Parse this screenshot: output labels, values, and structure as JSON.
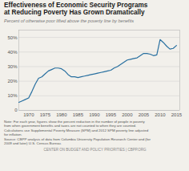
{
  "chart_data": {
    "type": "line",
    "title": "Effectiveness of Economic Security Programs\nat Reducing Poverty Has Grown Dramatically",
    "subtitle": "Percent of otherwise poor lifted above the poverty line by benefits",
    "annotations": [
      "Note: For each year, figures show the percent reduction in the number of people in poverty\nfrom when government benefits and taxes are not counted to when they are counted.\nCalculations use Supplemental Poverty Measure (SPM) and 2012 SPM poverty line adjusted\nfor inflation.",
      "Source: CBPP analysis of data from Columbia University Population Research Center and (for\n2009 and later) U.S. Census Bureau.",
      "CENTER ON BUDGET AND POLICY PRIORITIES | CBPP.ORG"
    ],
    "x": [
      1967,
      1968,
      1969,
      1970,
      1971,
      1972,
      1973,
      1974,
      1975,
      1976,
      1977,
      1978,
      1979,
      1980,
      1981,
      1982,
      1983,
      1984,
      1985,
      1986,
      1987,
      1988,
      1989,
      1990,
      1991,
      1992,
      1993,
      1994,
      1995,
      1996,
      1997,
      1998,
      1999,
      2000,
      2001,
      2002,
      2003,
      2004,
      2005,
      2006,
      2007,
      2008,
      2009,
      2010,
      2011,
      2012,
      2013,
      2014,
      2015
    ],
    "values": [
      5.5,
      6.5,
      7.5,
      8.5,
      13,
      18,
      22,
      23,
      25,
      27,
      28,
      29,
      29,
      28.5,
      27,
      24.5,
      23,
      23,
      22.5,
      23,
      23.5,
      24,
      24.5,
      25,
      25.5,
      26,
      26.5,
      27,
      27.5,
      29,
      30,
      31.5,
      33,
      34.5,
      35,
      35.5,
      36,
      37.5,
      39,
      39,
      38.5,
      37.5,
      38,
      48.5,
      46.5,
      44,
      42,
      42.5,
      44.5
    ],
    "color": "#2970a0",
    "xlim": [
      1967,
      2016
    ],
    "xticks": [
      1970,
      1975,
      1980,
      1985,
      1990,
      1995,
      2000,
      2005,
      2010,
      2015
    ],
    "ylim": [
      0,
      55
    ],
    "yticks": [
      0,
      {
        "value": 10,
        "label": "10%"
      },
      {
        "value": 20,
        "label": "20%"
      },
      {
        "value": 30,
        "label": "30%"
      },
      {
        "value": 40,
        "label": "40%"
      },
      {
        "value": 50,
        "label": "50%"
      }
    ],
    "grid": true
  }
}
